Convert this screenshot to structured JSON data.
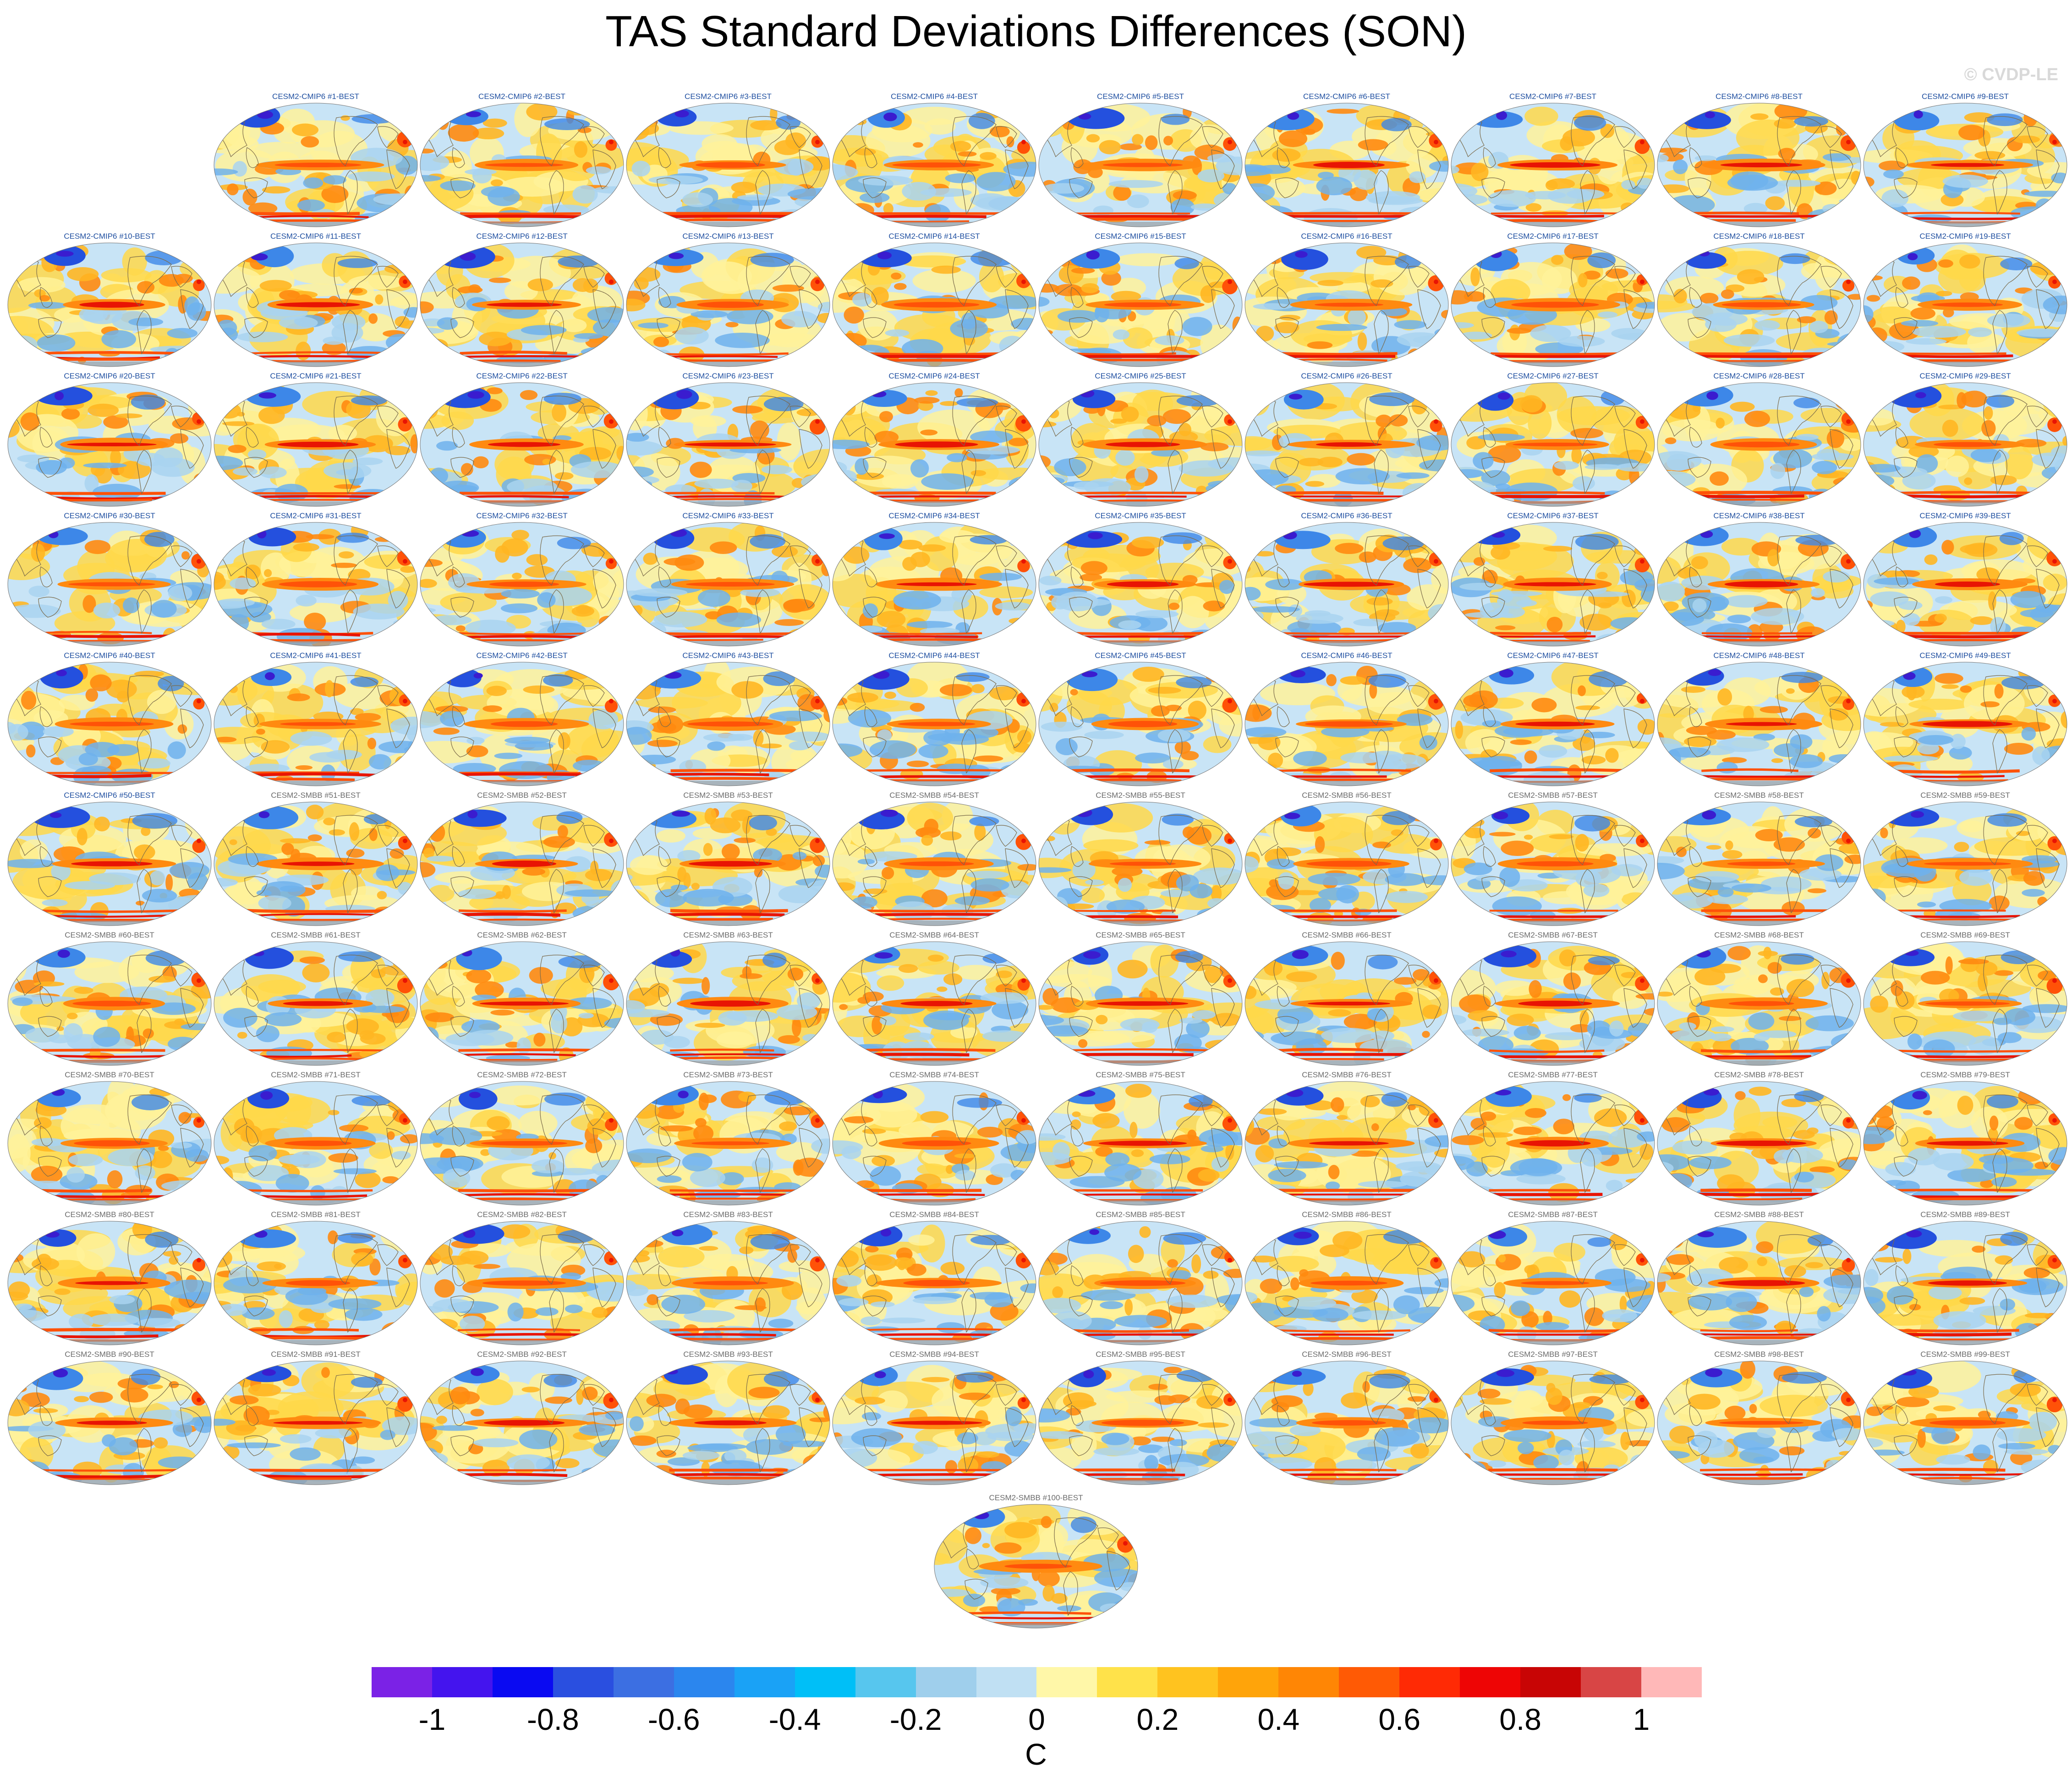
{
  "title": "TAS Standard Deviations Differences (SON)",
  "watermark": "© CVDP-LE",
  "panels": [
    "CESM2-CMIP6 #1-BEST",
    "CESM2-CMIP6 #2-BEST",
    "CESM2-CMIP6 #3-BEST",
    "CESM2-CMIP6 #4-BEST",
    "CESM2-CMIP6 #5-BEST",
    "CESM2-CMIP6 #6-BEST",
    "CESM2-CMIP6 #7-BEST",
    "CESM2-CMIP6 #8-BEST",
    "CESM2-CMIP6 #9-BEST",
    "CESM2-CMIP6 #10-BEST",
    "CESM2-CMIP6 #11-BEST",
    "CESM2-CMIP6 #12-BEST",
    "CESM2-CMIP6 #13-BEST",
    "CESM2-CMIP6 #14-BEST",
    "CESM2-CMIP6 #15-BEST",
    "CESM2-CMIP6 #16-BEST",
    "CESM2-CMIP6 #17-BEST",
    "CESM2-CMIP6 #18-BEST",
    "CESM2-CMIP6 #19-BEST",
    "CESM2-CMIP6 #20-BEST",
    "CESM2-CMIP6 #21-BEST",
    "CESM2-CMIP6 #22-BEST",
    "CESM2-CMIP6 #23-BEST",
    "CESM2-CMIP6 #24-BEST",
    "CESM2-CMIP6 #25-BEST",
    "CESM2-CMIP6 #26-BEST",
    "CESM2-CMIP6 #27-BEST",
    "CESM2-CMIP6 #28-BEST",
    "CESM2-CMIP6 #29-BEST",
    "CESM2-CMIP6 #30-BEST",
    "CESM2-CMIP6 #31-BEST",
    "CESM2-CMIP6 #32-BEST",
    "CESM2-CMIP6 #33-BEST",
    "CESM2-CMIP6 #34-BEST",
    "CESM2-CMIP6 #35-BEST",
    "CESM2-CMIP6 #36-BEST",
    "CESM2-CMIP6 #37-BEST",
    "CESM2-CMIP6 #38-BEST",
    "CESM2-CMIP6 #39-BEST",
    "CESM2-CMIP6 #40-BEST",
    "CESM2-CMIP6 #41-BEST",
    "CESM2-CMIP6 #42-BEST",
    "CESM2-CMIP6 #43-BEST",
    "CESM2-CMIP6 #44-BEST",
    "CESM2-CMIP6 #45-BEST",
    "CESM2-CMIP6 #46-BEST",
    "CESM2-CMIP6 #47-BEST",
    "CESM2-CMIP6 #48-BEST",
    "CESM2-CMIP6 #49-BEST",
    "CESM2-CMIP6 #50-BEST",
    "CESM2-SMBB #51-BEST",
    "CESM2-SMBB #52-BEST",
    "CESM2-SMBB #53-BEST",
    "CESM2-SMBB #54-BEST",
    "CESM2-SMBB #55-BEST",
    "CESM2-SMBB #56-BEST",
    "CESM2-SMBB #57-BEST",
    "CESM2-SMBB #58-BEST",
    "CESM2-SMBB #59-BEST",
    "CESM2-SMBB #60-BEST",
    "CESM2-SMBB #61-BEST",
    "CESM2-SMBB #62-BEST",
    "CESM2-SMBB #63-BEST",
    "CESM2-SMBB #64-BEST",
    "CESM2-SMBB #65-BEST",
    "CESM2-SMBB #66-BEST",
    "CESM2-SMBB #67-BEST",
    "CESM2-SMBB #68-BEST",
    "CESM2-SMBB #69-BEST",
    "CESM2-SMBB #70-BEST",
    "CESM2-SMBB #71-BEST",
    "CESM2-SMBB #72-BEST",
    "CESM2-SMBB #73-BEST",
    "CESM2-SMBB #74-BEST",
    "CESM2-SMBB #75-BEST",
    "CESM2-SMBB #76-BEST",
    "CESM2-SMBB #77-BEST",
    "CESM2-SMBB #78-BEST",
    "CESM2-SMBB #79-BEST",
    "CESM2-SMBB #80-BEST",
    "CESM2-SMBB #81-BEST",
    "CESM2-SMBB #82-BEST",
    "CESM2-SMBB #83-BEST",
    "CESM2-SMBB #84-BEST",
    "CESM2-SMBB #85-BEST",
    "CESM2-SMBB #86-BEST",
    "CESM2-SMBB #87-BEST",
    "CESM2-SMBB #88-BEST",
    "CESM2-SMBB #89-BEST",
    "CESM2-SMBB #90-BEST",
    "CESM2-SMBB #91-BEST",
    "CESM2-SMBB #92-BEST",
    "CESM2-SMBB #93-BEST",
    "CESM2-SMBB #94-BEST",
    "CESM2-SMBB #95-BEST",
    "CESM2-SMBB #96-BEST",
    "CESM2-SMBB #97-BEST",
    "CESM2-SMBB #98-BEST",
    "CESM2-SMBB #99-BEST",
    "CESM2-SMBB #100-BEST"
  ],
  "colorbar": {
    "colors": [
      "#7b22e6",
      "#4414ee",
      "#0a0af2",
      "#2a4fe0",
      "#3c6fe2",
      "#2b86ee",
      "#1aa2f6",
      "#00bff7",
      "#57c6ee",
      "#9fcfec",
      "#c0e0f3",
      "#fff7a8",
      "#ffe24a",
      "#ffc31f",
      "#ffa40a",
      "#ff8605",
      "#ff5a05",
      "#ff2a05",
      "#ee0505",
      "#c80505",
      "#d84545",
      "#ffb8b8"
    ],
    "ticks": [
      "-1",
      "-0.8",
      "-0.6",
      "-0.4",
      "-0.2",
      "0",
      "0.2",
      "0.4",
      "0.6",
      "0.8",
      "1"
    ],
    "unit": "C"
  },
  "map_colors": {
    "ocean_base": "#c8e4f6",
    "warm": [
      "#fff29a",
      "#ffd84a",
      "#ffb622",
      "#ff8a10",
      "#ff5208",
      "#e81404"
    ],
    "cool": [
      "#a9d3f0",
      "#6fb2ec",
      "#3d87e8",
      "#2450de",
      "#3a1ccf"
    ],
    "coast": "#7a6a4a",
    "land_gray": "#9aa0a4"
  }
}
